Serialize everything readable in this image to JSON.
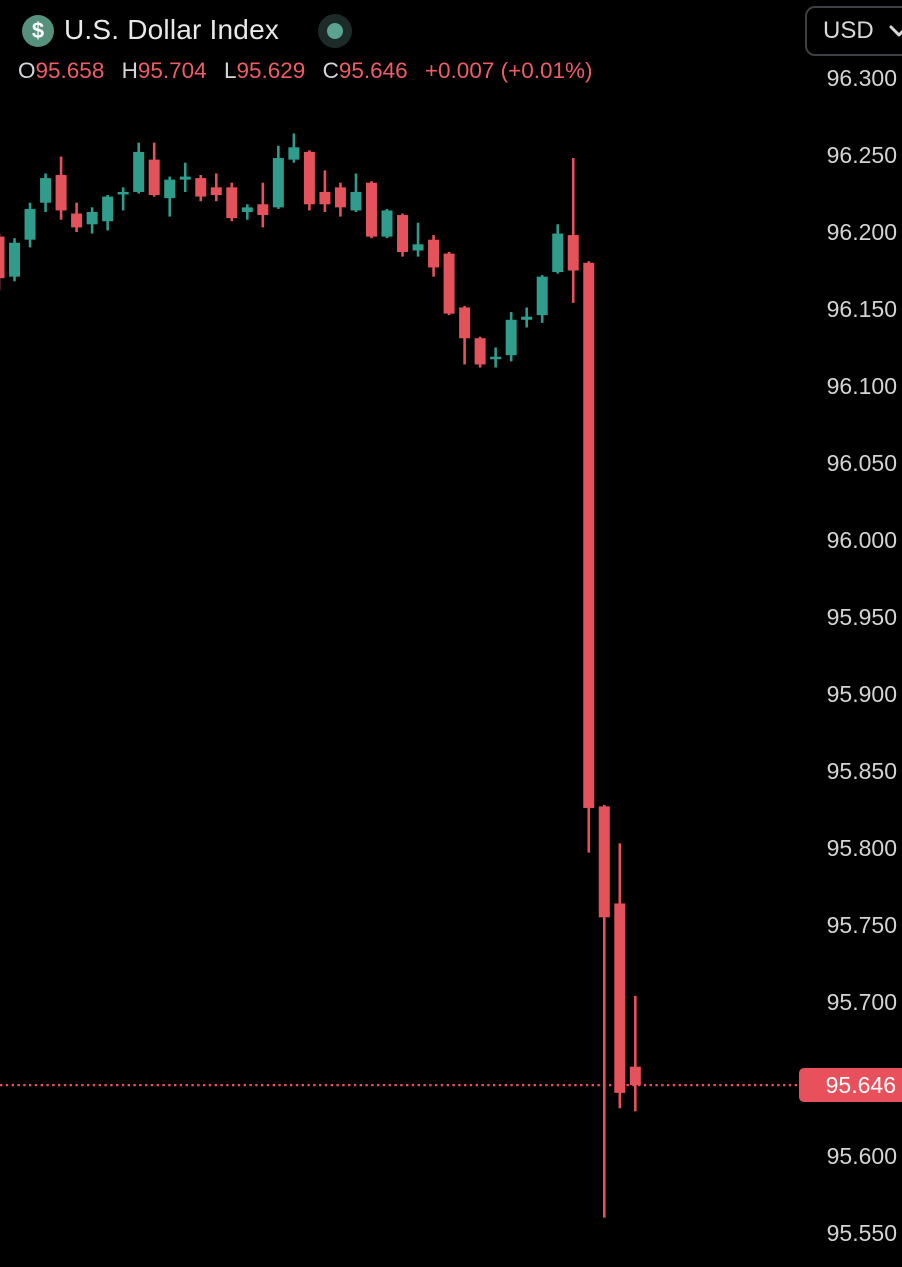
{
  "header": {
    "symbol_icon": {
      "glyph": "$",
      "bg_color": "#55917c"
    },
    "title": "U.S. Dollar Index",
    "market_status_indicator": {
      "outer_color": "#1d2b28",
      "inner_color": "#5ba391"
    },
    "currency_selector": {
      "value": "USD"
    }
  },
  "ohlc_bar": {
    "fields": [
      {
        "label": "O",
        "value": "95.658"
      },
      {
        "label": "H",
        "value": "95.704"
      },
      {
        "label": "L",
        "value": "95.629"
      },
      {
        "label": "C",
        "value": "95.646"
      }
    ],
    "change": "+0.007",
    "change_pct": "(+0.01%)"
  },
  "price_axis": {
    "ticks": [
      "96.300",
      "96.250",
      "96.200",
      "96.150",
      "96.100",
      "96.050",
      "96.000",
      "95.950",
      "95.900",
      "95.850",
      "95.800",
      "95.750",
      "95.700",
      "95.600",
      "95.550"
    ],
    "current_price": "95.646",
    "current_price_bg": "#e8515c"
  },
  "chart_data": {
    "type": "candlestick",
    "title": "U.S. Dollar Index",
    "ylim": [
      95.52,
      96.32
    ],
    "grid": false,
    "legend": null,
    "up_color": "#2f9c8c",
    "down_color": "#e4525c",
    "price_line_color": "#e8515c",
    "current_price": 95.646,
    "columns": [
      "open",
      "high",
      "low",
      "close"
    ],
    "candles": [
      [
        96.197,
        96.199,
        96.162,
        96.17
      ],
      [
        96.171,
        96.196,
        96.168,
        96.193
      ],
      [
        96.195,
        96.219,
        96.19,
        96.215
      ],
      [
        96.219,
        96.238,
        96.213,
        96.235
      ],
      [
        96.237,
        96.249,
        96.208,
        96.214
      ],
      [
        96.212,
        96.219,
        96.2,
        96.203
      ],
      [
        96.205,
        96.216,
        96.199,
        96.213
      ],
      [
        96.207,
        96.224,
        96.201,
        96.223
      ],
      [
        96.225,
        96.229,
        96.214,
        96.226
      ],
      [
        96.226,
        96.258,
        96.225,
        96.252
      ],
      [
        96.247,
        96.258,
        96.223,
        96.224
      ],
      [
        96.222,
        96.236,
        96.21,
        96.234
      ],
      [
        96.234,
        96.245,
        96.226,
        96.236
      ],
      [
        96.235,
        96.237,
        96.22,
        96.223
      ],
      [
        96.229,
        96.238,
        96.22,
        96.224
      ],
      [
        96.229,
        96.232,
        96.207,
        96.209
      ],
      [
        96.213,
        96.218,
        96.208,
        96.216
      ],
      [
        96.218,
        96.232,
        96.203,
        96.211
      ],
      [
        96.216,
        96.256,
        96.215,
        96.248
      ],
      [
        96.247,
        96.264,
        96.245,
        96.255
      ],
      [
        96.252,
        96.253,
        96.214,
        96.218
      ],
      [
        96.226,
        96.24,
        96.213,
        96.218
      ],
      [
        96.229,
        96.232,
        96.21,
        96.216
      ],
      [
        96.214,
        96.238,
        96.213,
        96.226
      ],
      [
        96.232,
        96.233,
        96.196,
        96.197
      ],
      [
        96.197,
        96.215,
        96.196,
        96.214
      ],
      [
        96.211,
        96.212,
        96.184,
        96.187
      ],
      [
        96.188,
        96.206,
        96.184,
        96.192
      ],
      [
        96.195,
        96.198,
        96.171,
        96.177
      ],
      [
        96.186,
        96.187,
        96.146,
        96.147
      ],
      [
        96.151,
        96.152,
        96.114,
        96.131
      ],
      [
        96.131,
        96.132,
        96.112,
        96.114
      ],
      [
        96.118,
        96.125,
        96.112,
        96.119
      ],
      [
        96.12,
        96.148,
        96.116,
        96.143
      ],
      [
        96.143,
        96.151,
        96.138,
        96.145
      ],
      [
        96.146,
        96.172,
        96.141,
        96.171
      ],
      [
        96.174,
        96.205,
        96.173,
        96.199
      ],
      [
        96.198,
        96.248,
        96.154,
        96.175
      ],
      [
        96.18,
        96.181,
        95.797,
        95.826
      ],
      [
        95.827,
        95.828,
        95.56,
        95.755
      ],
      [
        95.764,
        95.803,
        95.631,
        95.641
      ],
      [
        95.658,
        95.704,
        95.629,
        95.646
      ]
    ]
  }
}
